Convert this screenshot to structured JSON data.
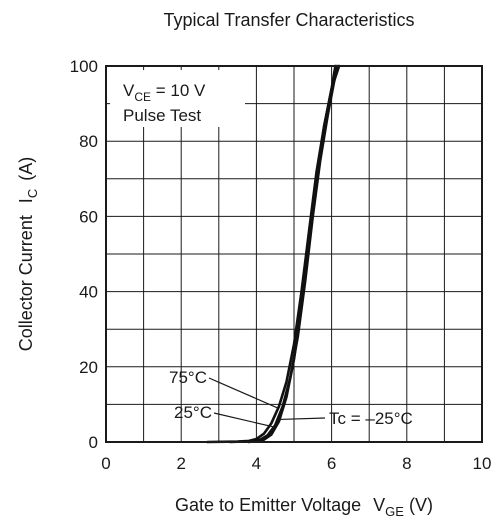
{
  "chart_data": {
    "type": "line",
    "title": "Typical Transfer Characteristics",
    "xlabel": {
      "main": "Gate to Emitter Voltage",
      "sym": "V",
      "sub": "GE",
      "unit": "(V)"
    },
    "ylabel": {
      "main": "Collector Current",
      "sym": "I",
      "sub": "C",
      "unit": "(A)"
    },
    "xlim": [
      0,
      10
    ],
    "ylim": [
      0,
      100
    ],
    "xticks": [
      0,
      2,
      4,
      6,
      8,
      10
    ],
    "yticks": [
      0,
      20,
      40,
      60,
      80,
      100
    ],
    "grid": true,
    "conditions": {
      "line1": {
        "sym": "V",
        "sub": "CE",
        "rest": " = 10 V"
      },
      "line2": "Pulse Test"
    },
    "series": [
      {
        "name": "75°C",
        "x": [
          2.7,
          3.5,
          3.8,
          4.0,
          4.2,
          4.4,
          4.6,
          4.8,
          5.0,
          5.2,
          5.4,
          5.6,
          5.8,
          6.0,
          6.1
        ],
        "y": [
          0,
          0.1,
          0.3,
          0.8,
          2.2,
          5,
          9.5,
          16,
          26,
          40,
          56,
          72,
          84,
          94,
          100
        ]
      },
      {
        "name": "25°C",
        "x": [
          3.3,
          3.9,
          4.1,
          4.3,
          4.5,
          4.7,
          4.9,
          5.1,
          5.3,
          5.5,
          5.7,
          5.9,
          6.05,
          6.15
        ],
        "y": [
          0,
          0.2,
          0.6,
          1.8,
          4.5,
          9.5,
          17,
          28,
          43,
          60,
          75,
          87,
          95,
          100
        ]
      },
      {
        "name": "Tc = –25°C",
        "x": [
          3.8,
          4.2,
          4.4,
          4.6,
          4.8,
          5.0,
          5.2,
          5.4,
          5.6,
          5.8,
          6.0,
          6.2
        ],
        "y": [
          0,
          0.6,
          2.0,
          5.5,
          12,
          22,
          36,
          53,
          70,
          84,
          94,
          100
        ]
      }
    ],
    "annotations": [
      {
        "text": "75°C",
        "series": 0
      },
      {
        "text": "25°C",
        "series": 1
      },
      {
        "text": "Tc = –25°C",
        "series": 2
      }
    ]
  }
}
